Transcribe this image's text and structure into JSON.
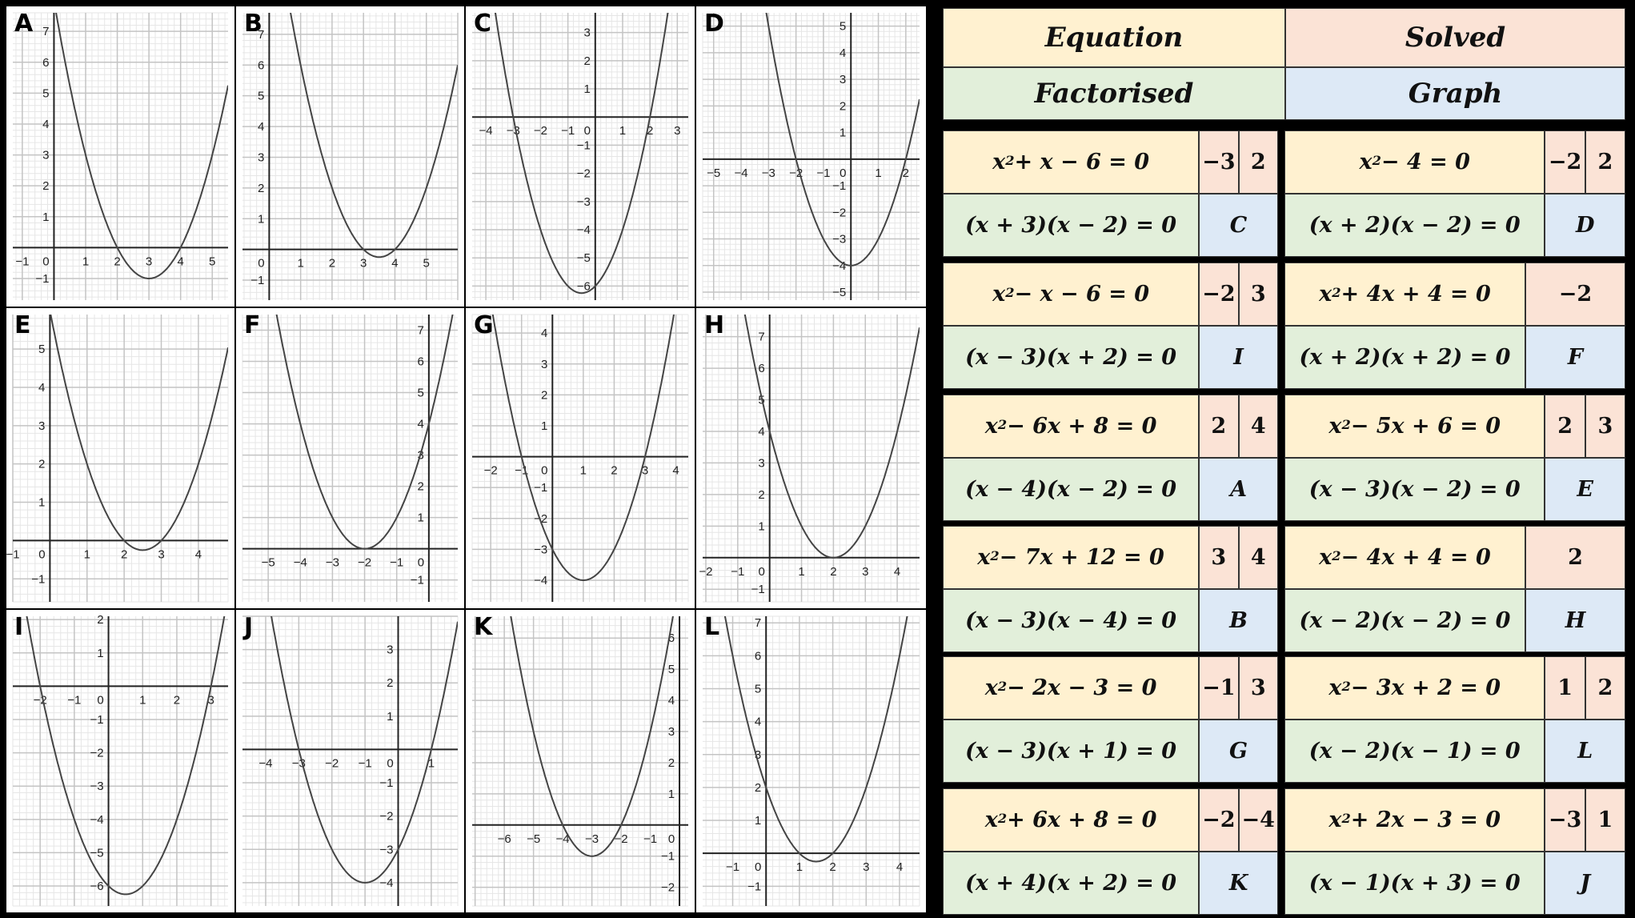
{
  "header": {
    "equation": "Equation",
    "solved": "Solved",
    "factorised": "Factorised",
    "graph": "Graph"
  },
  "colors": {
    "equation_bg": "#fff1d0",
    "solved_bg": "#fbe3d6",
    "factorised_bg": "#e2efda",
    "graph_bg": "#dde9f6",
    "border": "#000000"
  },
  "cards": [
    {
      "equation_base": "x",
      "equation_rest": " + x − 6 = 0",
      "solutions": [
        "−3",
        "2"
      ],
      "factorised": "(x + 3)(x − 2) = 0",
      "graph": "C"
    },
    {
      "equation_base": "x",
      "equation_rest": " − 4 = 0",
      "solutions": [
        "−2",
        "2"
      ],
      "factorised": "(x + 2)(x − 2) = 0",
      "graph": "D"
    },
    {
      "equation_base": "x",
      "equation_rest": " − x − 6 = 0",
      "solutions": [
        "−2",
        "3"
      ],
      "factorised": "(x − 3)(x + 2) = 0",
      "graph": "I"
    },
    {
      "equation_base": "x",
      "equation_rest": " + 4x + 4 = 0",
      "solutions": [
        "−2"
      ],
      "factorised": "(x + 2)(x + 2) = 0",
      "graph": "F"
    },
    {
      "equation_base": "x",
      "equation_rest": " − 6x + 8 = 0",
      "solutions": [
        "2",
        "4"
      ],
      "factorised": "(x − 4)(x − 2) = 0",
      "graph": "A"
    },
    {
      "equation_base": "x",
      "equation_rest": " − 5x + 6 = 0",
      "solutions": [
        "2",
        "3"
      ],
      "factorised": "(x − 3)(x − 2) = 0",
      "graph": "E"
    },
    {
      "equation_base": "x",
      "equation_rest": " − 7x + 12 = 0",
      "solutions": [
        "3",
        "4"
      ],
      "factorised": "(x − 3)(x − 4) = 0",
      "graph": "B"
    },
    {
      "equation_base": "x",
      "equation_rest": " − 4x + 4 = 0",
      "solutions": [
        "2"
      ],
      "factorised": "(x − 2)(x − 2) = 0",
      "graph": "H"
    },
    {
      "equation_base": "x",
      "equation_rest": " − 2x − 3 = 0",
      "solutions": [
        "−1",
        "3"
      ],
      "factorised": "(x − 3)(x + 1) = 0",
      "graph": "G"
    },
    {
      "equation_base": "x",
      "equation_rest": " − 3x + 2 = 0",
      "solutions": [
        "1",
        "2"
      ],
      "factorised": "(x − 2)(x − 1) = 0",
      "graph": "L"
    },
    {
      "equation_base": "x",
      "equation_rest": " + 6x + 8 = 0",
      "solutions": [
        "−2",
        "−4"
      ],
      "factorised": "(x + 4)(x + 2) = 0",
      "graph": "K"
    },
    {
      "equation_base": "x",
      "equation_rest": " + 2x − 3 = 0",
      "solutions": [
        "−3",
        "1"
      ],
      "factorised": "(x − 1)(x + 3) = 0",
      "graph": "J"
    }
  ],
  "chart_data": [
    {
      "label": "A",
      "type": "line",
      "function": "y = x^2 - 6x + 8",
      "roots": [
        2,
        4
      ],
      "vertex": [
        3,
        -1
      ],
      "xlim": [
        -1.3,
        5.5
      ],
      "ylim": [
        -1.7,
        7.6
      ],
      "xticks": [
        -1,
        0,
        1,
        2,
        3,
        4,
        5
      ],
      "yticks": [
        -1,
        1,
        2,
        3,
        4,
        5,
        6,
        7
      ],
      "grid": true
    },
    {
      "label": "B",
      "type": "line",
      "function": "y = x^2 - 7x + 12",
      "roots": [
        3,
        4
      ],
      "vertex": [
        3.5,
        -0.25
      ],
      "xlim": [
        -0.85,
        6
      ],
      "ylim": [
        -1.65,
        7.7
      ],
      "xticks": [
        0,
        1,
        2,
        3,
        4,
        5
      ],
      "yticks": [
        -1,
        1,
        2,
        3,
        4,
        5,
        6,
        7
      ],
      "grid": true
    },
    {
      "label": "C",
      "type": "line",
      "function": "y = x^2 + x - 6",
      "roots": [
        -3,
        2
      ],
      "vertex": [
        -0.5,
        -6.25
      ],
      "xlim": [
        -4.5,
        3.4
      ],
      "ylim": [
        -6.5,
        3.7
      ],
      "xticks": [
        -4,
        -3,
        -2,
        -1,
        0,
        1,
        2,
        3
      ],
      "yticks": [
        -6,
        -5,
        -4,
        -3,
        -2,
        -1,
        1,
        2,
        3
      ],
      "grid": true
    },
    {
      "label": "D",
      "type": "line",
      "function": "y = x^2 - 4",
      "roots": [
        -2,
        2
      ],
      "vertex": [
        0,
        -4
      ],
      "xlim": [
        -5.4,
        2.5
      ],
      "ylim": [
        -5.3,
        5.5
      ],
      "xticks": [
        -5,
        -4,
        -3,
        -2,
        -1,
        0,
        1,
        2
      ],
      "yticks": [
        -5,
        -4,
        -3,
        -2,
        -1,
        1,
        2,
        3,
        4,
        5
      ],
      "grid": true
    },
    {
      "label": "E",
      "type": "line",
      "function": "y = x^2 - 5x + 6",
      "roots": [
        2,
        3
      ],
      "vertex": [
        2.5,
        -0.25
      ],
      "xlim": [
        -1,
        4.8
      ],
      "ylim": [
        -1.6,
        5.9
      ],
      "xticks": [
        -1,
        0,
        1,
        2,
        3,
        4
      ],
      "yticks": [
        -1,
        1,
        2,
        3,
        4,
        5
      ],
      "grid": true
    },
    {
      "label": "F",
      "type": "line",
      "function": "y = x^2 + 4x + 4",
      "roots": [
        -2
      ],
      "vertex": [
        -2,
        0
      ],
      "xlim": [
        -5.8,
        0.9
      ],
      "ylim": [
        -1.7,
        7.5
      ],
      "xticks": [
        -5,
        -4,
        -3,
        -2,
        -1,
        0
      ],
      "yticks": [
        -1,
        1,
        2,
        3,
        4,
        5,
        6,
        7
      ],
      "grid": true
    },
    {
      "label": "G",
      "type": "line",
      "function": "y = x^2 - 2x - 3",
      "roots": [
        -1,
        3
      ],
      "vertex": [
        1,
        -4
      ],
      "xlim": [
        -2.6,
        4.4
      ],
      "ylim": [
        -4.7,
        4.6
      ],
      "xticks": [
        -2,
        -1,
        0,
        1,
        2,
        3,
        4
      ],
      "yticks": [
        -4,
        -3,
        -2,
        -1,
        1,
        2,
        3,
        4
      ],
      "grid": true
    },
    {
      "label": "H",
      "type": "line",
      "function": "y = x^2 - 4x + 4",
      "roots": [
        2
      ],
      "vertex": [
        2,
        0
      ],
      "xlim": [
        -2.1,
        4.7
      ],
      "ylim": [
        -1.4,
        7.7
      ],
      "xticks": [
        -2,
        -1,
        0,
        1,
        2,
        3,
        4
      ],
      "yticks": [
        -1,
        1,
        2,
        3,
        4,
        5,
        6,
        7
      ],
      "grid": true
    },
    {
      "label": "I",
      "type": "line",
      "function": "y = x^2 - x - 6",
      "roots": [
        -2,
        3
      ],
      "vertex": [
        0.5,
        -6.25
      ],
      "xlim": [
        -2.8,
        3.5
      ],
      "ylim": [
        -6.6,
        2.1
      ],
      "xticks": [
        -2,
        -1,
        0,
        1,
        2,
        3
      ],
      "yticks": [
        -6,
        -5,
        -4,
        -3,
        -2,
        -1,
        1,
        2
      ],
      "grid": true
    },
    {
      "label": "J",
      "type": "line",
      "function": "y = x^2 + 2x - 3",
      "roots": [
        -3,
        1
      ],
      "vertex": [
        -1,
        -4
      ],
      "xlim": [
        -4.7,
        1.8
      ],
      "ylim": [
        -4.7,
        4
      ],
      "xticks": [
        -4,
        -3,
        -2,
        -1,
        0,
        1
      ],
      "yticks": [
        -4,
        -3,
        -2,
        -1,
        1,
        2,
        3
      ],
      "grid": true
    },
    {
      "label": "K",
      "type": "line",
      "function": "y = x^2 + 6x + 8",
      "roots": [
        -4,
        -2
      ],
      "vertex": [
        -3,
        -1
      ],
      "xlim": [
        -7.1,
        0.3
      ],
      "ylim": [
        -2.6,
        6.7
      ],
      "xticks": [
        -6,
        -5,
        -4,
        -3,
        -2,
        -1,
        0
      ],
      "yticks": [
        -2,
        -1,
        1,
        2,
        3,
        4,
        5,
        6
      ],
      "grid": true
    },
    {
      "label": "L",
      "type": "line",
      "function": "y = x^2 - 3x + 2",
      "roots": [
        1,
        2
      ],
      "vertex": [
        1.5,
        -0.25
      ],
      "xlim": [
        -1.9,
        4.6
      ],
      "ylim": [
        -1.6,
        7.2
      ],
      "xticks": [
        -1,
        0,
        1,
        2,
        3,
        4
      ],
      "yticks": [
        -1,
        1,
        2,
        3,
        4,
        5,
        6,
        7
      ],
      "grid": true
    }
  ]
}
